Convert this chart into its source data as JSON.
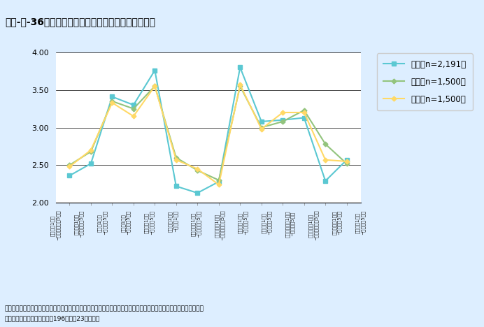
{
  "title": "第１-２-36図／科学技術の各種分野に対するイメージ",
  "categories": [
    "面白い（1点）\n─つまらない（5点）",
    "愉快な（1点）\n─不愉快な（5点）",
    "若い（1点）\n─楽しい（5点）",
    "汚い（1点）\n─楽しい（5点）",
    "難しい（1点）\n─難しい（5点）",
    "新しい（1点）\n─古い（1点）",
    "未来的な（1点）\n─過去的な（5点）",
    "合理的な（1点）\n─非合理的な（5点）",
    "不便な（1点）\n─便利な（5点）",
    "温かい（1点）\n─冷たい（5点）",
    "やわらかい（1点）\n─かたい（5点）",
    "堅苦しい（1点）\n─やわらかな（5点）",
    "人工的な（1点）\n─自然な（5点）",
    "非凡な（1点）\n─平凡な（5点）"
  ],
  "japan": [
    2.36,
    2.52,
    3.41,
    3.3,
    3.76,
    2.22,
    2.13,
    2.28,
    3.8,
    3.08,
    3.1,
    3.13,
    2.29,
    2.57
  ],
  "usa": [
    2.5,
    2.68,
    3.35,
    3.25,
    3.55,
    2.6,
    2.43,
    2.3,
    3.55,
    3.0,
    3.08,
    3.23,
    2.78,
    2.52
  ],
  "uk": [
    2.48,
    2.7,
    3.33,
    3.15,
    3.55,
    2.57,
    2.45,
    2.24,
    3.57,
    2.98,
    3.2,
    3.2,
    2.57,
    2.55
  ],
  "japan_color": "#5bc8d2",
  "usa_color": "#93c47d",
  "uk_color": "#ffd966",
  "background_color": "#ddeeff",
  "plot_background": "#ffffff",
  "ylim": [
    2.0,
    4.0
  ],
  "yticks": [
    2.0,
    2.5,
    3.0,
    3.5,
    4.0
  ],
  "legend_japan": "日本（n=2,191）",
  "legend_usa": "米国（n=1,500）",
  "legend_uk": "英国（n=1,500）",
  "footnote1": "資料：科学技術政策研究所「日・米・英における国民の科学技術に関する意識の比較分析－インターネットを利用した",
  "footnote2": "　　比較調査－」調査資料－196（平成23年３月）"
}
